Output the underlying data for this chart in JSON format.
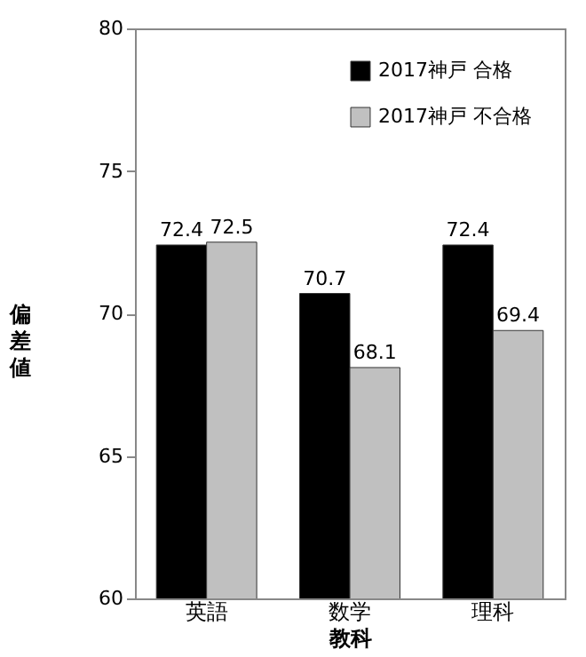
{
  "chart_data": {
    "type": "bar",
    "categories": [
      "英語",
      "数学",
      "理科"
    ],
    "series": [
      {
        "name": "2017神戸 合格",
        "color": "#000000",
        "values": [
          72.4,
          70.7,
          72.4
        ]
      },
      {
        "name": "2017神戸 不合格",
        "color": "#c0c0c0",
        "values": [
          72.5,
          68.1,
          69.4
        ]
      }
    ],
    "xlabel": "教科",
    "ylabel": "偏差値",
    "ylim": [
      60,
      80
    ],
    "yticks": [
      60,
      65,
      70,
      75,
      80
    ],
    "data_labels": true,
    "legend": "top right",
    "grid": false
  }
}
